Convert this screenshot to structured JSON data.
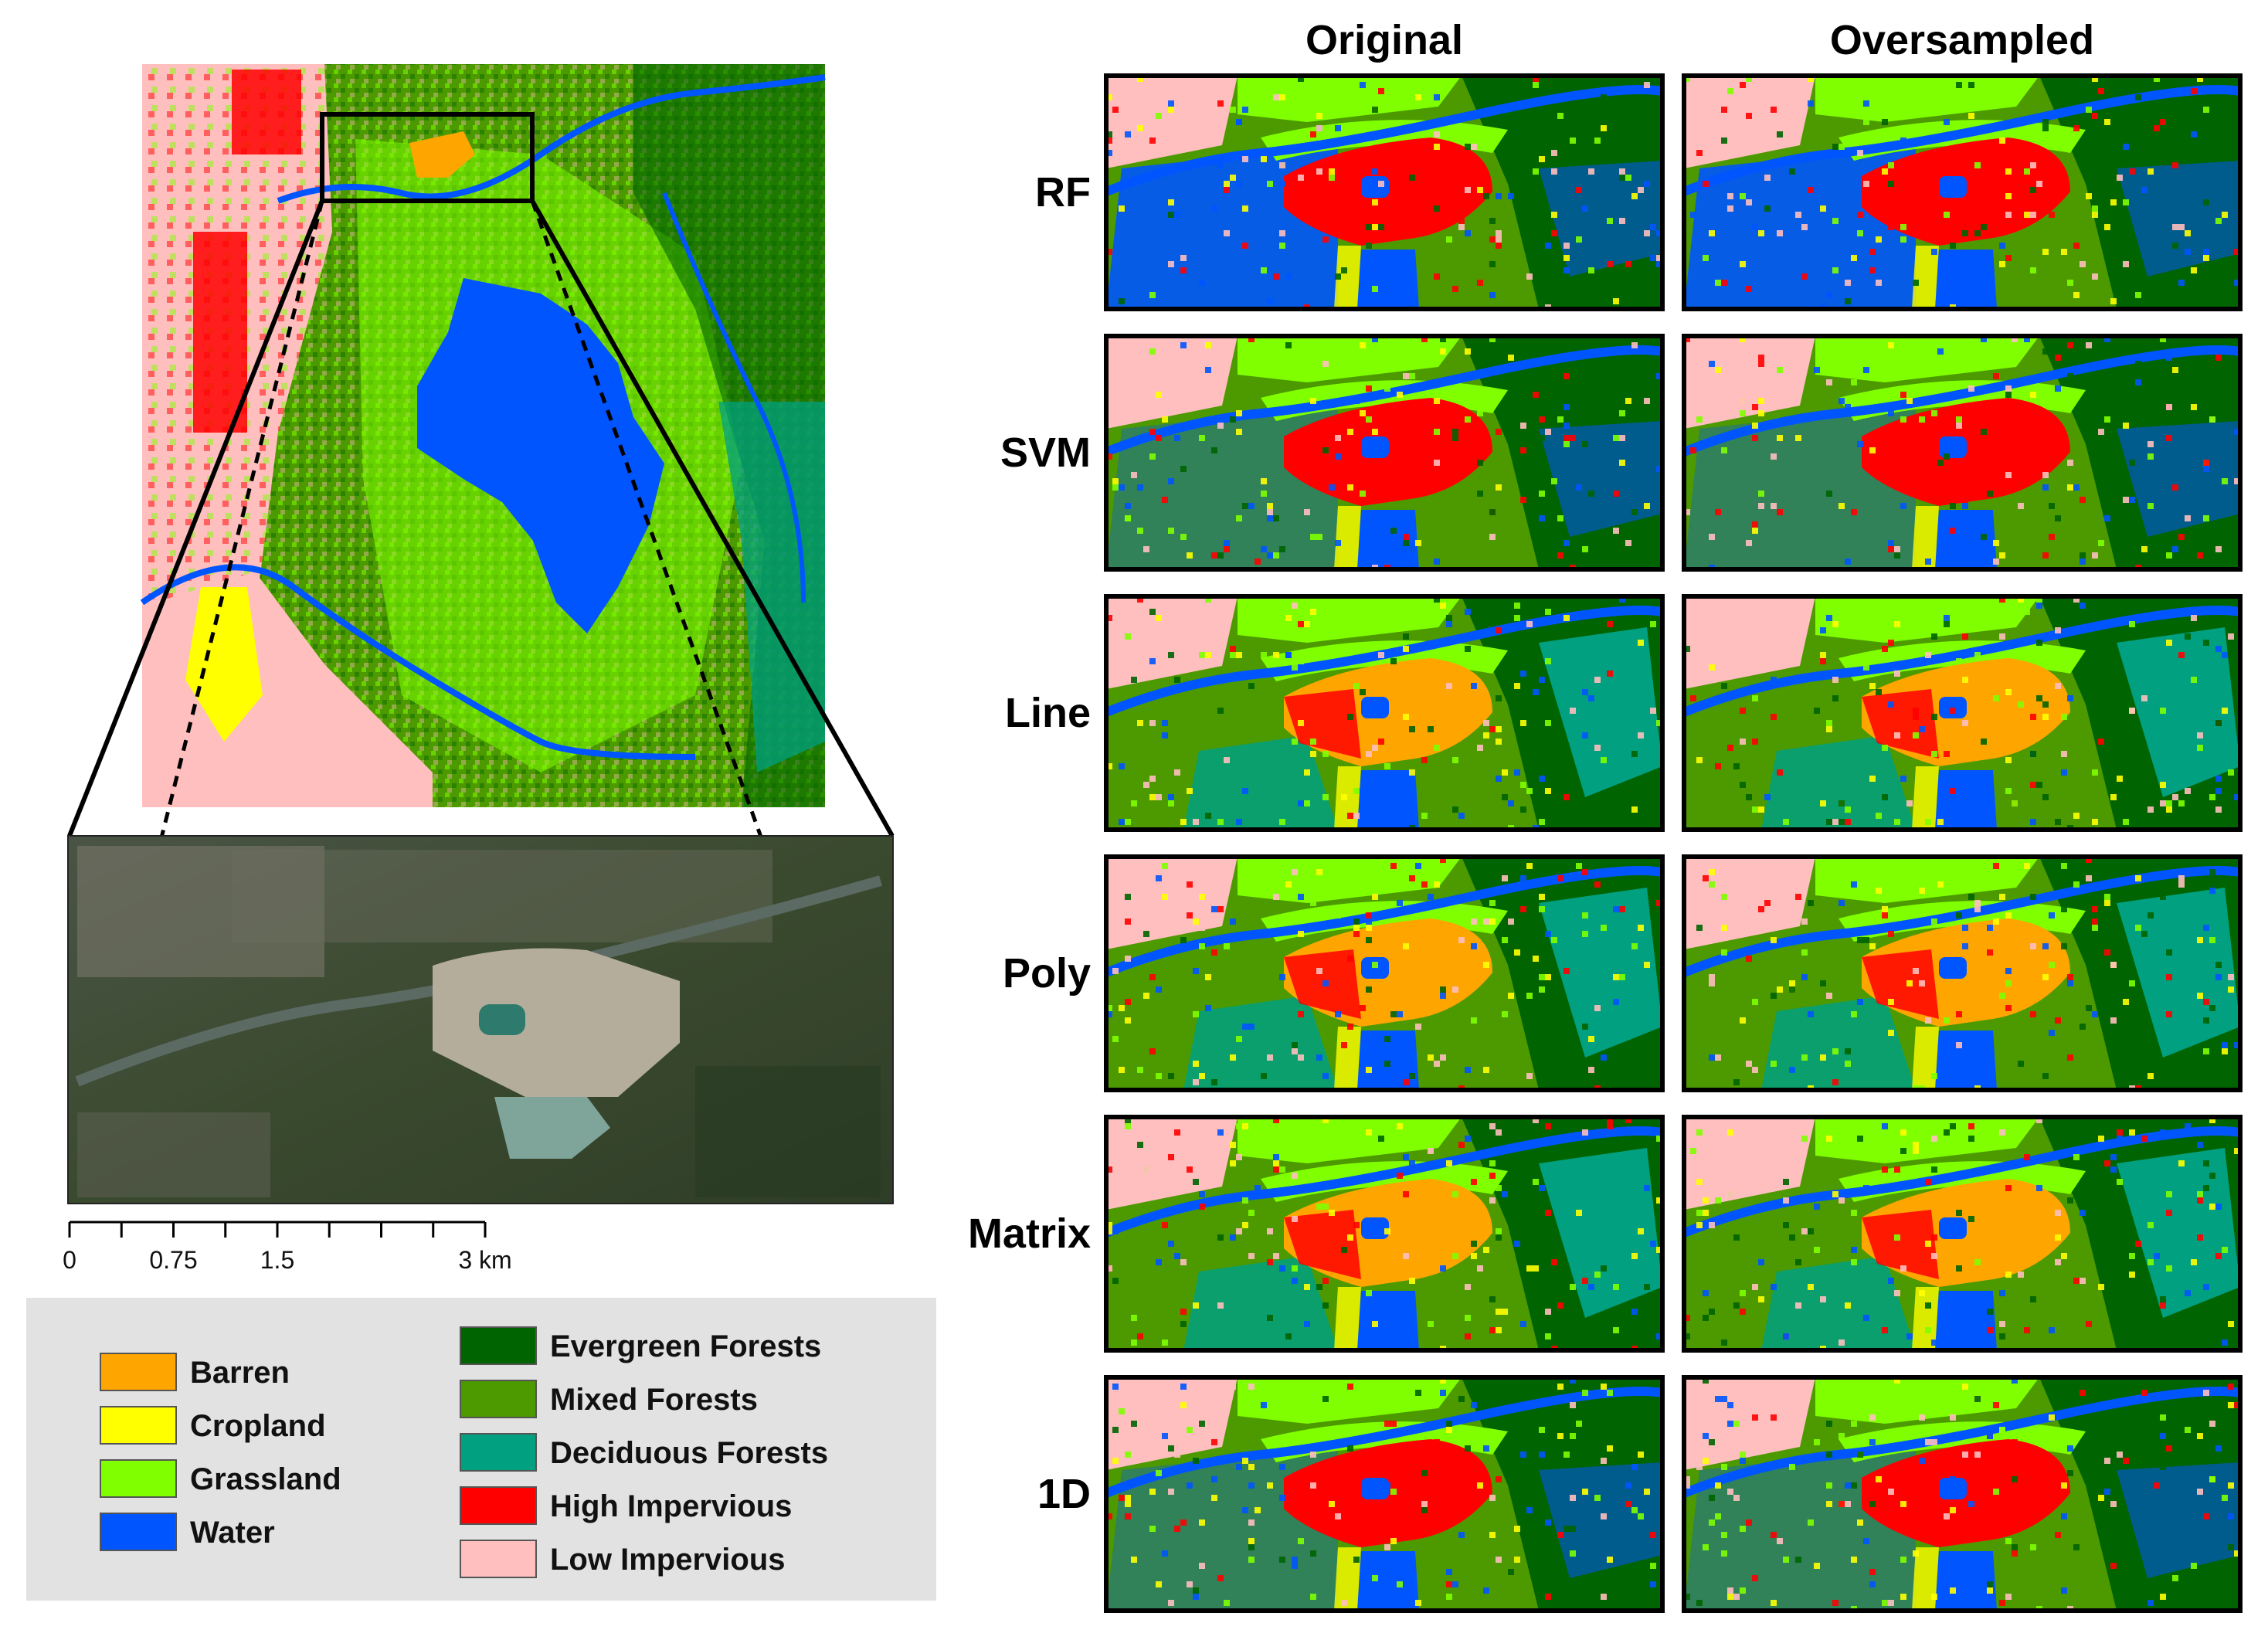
{
  "columns": [
    "Original",
    "Oversampled"
  ],
  "rows": [
    "RF",
    "SVM",
    "Line",
    "Poly",
    "Matrix",
    "1D"
  ],
  "scale_bar": {
    "ticks": [
      "0",
      "0.75",
      "1.5",
      "3 km"
    ]
  },
  "legend": {
    "left": [
      {
        "label": "Barren",
        "color": "#FFA500"
      },
      {
        "label": "Cropland",
        "color": "#FFFF00"
      },
      {
        "label": "Grassland",
        "color": "#7FFF00"
      },
      {
        "label": "Water",
        "color": "#0055FF"
      }
    ],
    "right": [
      {
        "label": "Evergreen Forests",
        "color": "#006400"
      },
      {
        "label": "Mixed Forests",
        "color": "#4C9A00"
      },
      {
        "label": "Deciduous Forests",
        "color": "#00A080"
      },
      {
        "label": "High Impervious",
        "color": "#FF0000"
      },
      {
        "label": "Low Impervious",
        "color": "#FFBFBF"
      }
    ]
  },
  "classes": {
    "barren": "#FFA500",
    "cropland": "#FFFF00",
    "grassland": "#7FFF00",
    "water": "#0055FF",
    "evergreen": "#006400",
    "mixed": "#4C9A00",
    "deciduous": "#00A080",
    "high": "#FF0000",
    "low": "#FFBFBF"
  },
  "panel_center_class": {
    "RF": "high",
    "SVM": "high",
    "Line": "barren",
    "Poly": "barren",
    "Matrix": "barren",
    "1D": "high"
  }
}
